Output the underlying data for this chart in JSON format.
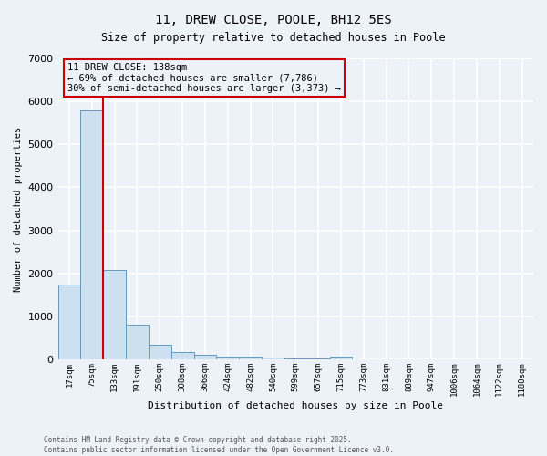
{
  "title": "11, DREW CLOSE, POOLE, BH12 5ES",
  "subtitle": "Size of property relative to detached houses in Poole",
  "xlabel": "Distribution of detached houses by size in Poole",
  "ylabel": "Number of detached properties",
  "categories": [
    "17sqm",
    "75sqm",
    "133sqm",
    "191sqm",
    "250sqm",
    "308sqm",
    "366sqm",
    "424sqm",
    "482sqm",
    "540sqm",
    "599sqm",
    "657sqm",
    "715sqm",
    "773sqm",
    "831sqm",
    "889sqm",
    "947sqm",
    "1006sqm",
    "1064sqm",
    "1122sqm",
    "1180sqm"
  ],
  "values": [
    1750,
    5800,
    2080,
    810,
    330,
    175,
    105,
    70,
    60,
    35,
    25,
    18,
    55,
    0,
    0,
    0,
    0,
    0,
    0,
    0,
    0
  ],
  "bar_color": "#cde0f0",
  "bar_edge_color": "#6699bb",
  "vline_color": "#cc0000",
  "annotation_box_color": "#cc0000",
  "annotation_text_line1": "11 DREW CLOSE: 138sqm",
  "annotation_text_line2": "← 69% of detached houses are smaller (7,786)",
  "annotation_text_line3": "30% of semi-detached houses are larger (3,373) →",
  "ylim": [
    0,
    7000
  ],
  "yticks": [
    0,
    1000,
    2000,
    3000,
    4000,
    5000,
    6000,
    7000
  ],
  "footnote_line1": "Contains HM Land Registry data © Crown copyright and database right 2025.",
  "footnote_line2": "Contains public sector information licensed under the Open Government Licence v3.0.",
  "bg_color": "#edf2f9",
  "grid_color": "#ffffff"
}
